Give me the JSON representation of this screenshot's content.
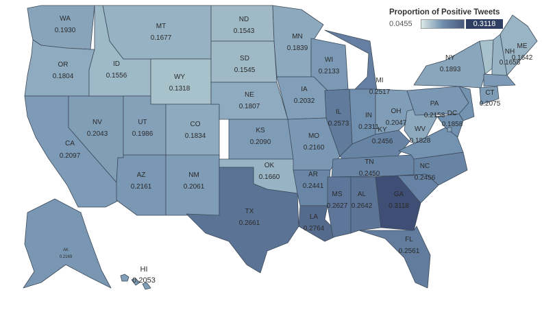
{
  "legend": {
    "title": "Proportion of Positive Tweets",
    "min": "0.0455",
    "max": "0.3118"
  },
  "color_scale": {
    "low": "#dbe9e6",
    "mid": "#6f8eae",
    "high": "#3f4e74",
    "domain": [
      0.0455,
      0.3118
    ]
  },
  "states": [
    {
      "abbr": "WA",
      "value": "0.1930",
      "num": 0.193
    },
    {
      "abbr": "OR",
      "value": "0.1804",
      "num": 0.1804
    },
    {
      "abbr": "CA",
      "value": "0.2097",
      "num": 0.2097
    },
    {
      "abbr": "NV",
      "value": "0.2043",
      "num": 0.2043
    },
    {
      "abbr": "ID",
      "value": "0.1556",
      "num": 0.1556
    },
    {
      "abbr": "MT",
      "value": "0.1677",
      "num": 0.1677
    },
    {
      "abbr": "WY",
      "value": "0.1318",
      "num": 0.1318
    },
    {
      "abbr": "UT",
      "value": "0.1986",
      "num": 0.1986
    },
    {
      "abbr": "AZ",
      "value": "0.2161",
      "num": 0.2161
    },
    {
      "abbr": "CO",
      "value": "0.1834",
      "num": 0.1834
    },
    {
      "abbr": "NM",
      "value": "0.2061",
      "num": 0.2061
    },
    {
      "abbr": "ND",
      "value": "0.1543",
      "num": 0.1543
    },
    {
      "abbr": "SD",
      "value": "0.1545",
      "num": 0.1545
    },
    {
      "abbr": "NE",
      "value": "0.1807",
      "num": 0.1807
    },
    {
      "abbr": "KS",
      "value": "0.2090",
      "num": 0.209
    },
    {
      "abbr": "OK",
      "value": "0.1660",
      "num": 0.166
    },
    {
      "abbr": "TX",
      "value": "0.2661",
      "num": 0.2661
    },
    {
      "abbr": "MN",
      "value": "0.1839",
      "num": 0.1839
    },
    {
      "abbr": "IA",
      "value": "0.2032",
      "num": 0.2032
    },
    {
      "abbr": "MO",
      "value": "0.2160",
      "num": 0.216
    },
    {
      "abbr": "AR",
      "value": "0.2441",
      "num": 0.2441
    },
    {
      "abbr": "LA",
      "value": "0.2764",
      "num": 0.2764
    },
    {
      "abbr": "WI",
      "value": "0.2133",
      "num": 0.2133
    },
    {
      "abbr": "IL",
      "value": "0.2573",
      "num": 0.2573
    },
    {
      "abbr": "MI",
      "value": "0.2517",
      "num": 0.2517
    },
    {
      "abbr": "IN",
      "value": "0.2311",
      "num": 0.2311
    },
    {
      "abbr": "OH",
      "value": "0.2047",
      "num": 0.2047
    },
    {
      "abbr": "KY",
      "value": "0.2456",
      "num": 0.2456
    },
    {
      "abbr": "TN",
      "value": "0.2450",
      "num": 0.245
    },
    {
      "abbr": "MS",
      "value": "0.2627",
      "num": 0.2627
    },
    {
      "abbr": "AL",
      "value": "0.2642",
      "num": 0.2642
    },
    {
      "abbr": "GA",
      "value": "0.3118",
      "num": 0.3118
    },
    {
      "abbr": "FL",
      "value": "0.2561",
      "num": 0.2561
    },
    {
      "abbr": "SC",
      "value": "",
      "num": 0.248
    },
    {
      "abbr": "NC",
      "value": "0.2456",
      "num": 0.2456
    },
    {
      "abbr": "VA",
      "value": "",
      "num": 0.225
    },
    {
      "abbr": "WV",
      "value": "0.1828",
      "num": 0.1828
    },
    {
      "abbr": "PA",
      "value": "0.2158",
      "num": 0.2158
    },
    {
      "abbr": "NY",
      "value": "0.1893",
      "num": 0.1893
    },
    {
      "abbr": "VT",
      "value": "",
      "num": 0.135
    },
    {
      "abbr": "NH",
      "value": "0.1658",
      "num": 0.1658
    },
    {
      "abbr": "ME",
      "value": "0.1642",
      "num": 0.1642
    },
    {
      "abbr": "MA",
      "value": "",
      "num": 0.21
    },
    {
      "abbr": "CT",
      "value": "0.2075",
      "num": 0.2075
    },
    {
      "abbr": "NJ",
      "value": "",
      "num": 0.225
    },
    {
      "abbr": "MD",
      "value": "",
      "num": 0.23
    },
    {
      "abbr": "DC",
      "value": "0.1858",
      "num": 0.1858
    },
    {
      "abbr": "AK",
      "value": "0.2169",
      "num": 0.2169
    },
    {
      "abbr": "HI",
      "value": "0.2053",
      "num": 0.2053
    }
  ]
}
